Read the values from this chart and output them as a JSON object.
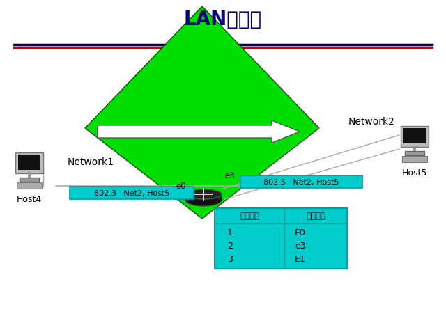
{
  "title": "LAN间路由",
  "title_color": "#000080",
  "title_fontsize": 20,
  "line1_color": "#000080",
  "line2_color": "#cc0000",
  "network1_label": "Network1",
  "network2_label": "Network2",
  "host4_label": "Host4",
  "host5_label": "Host5",
  "packet1_label": "802.3   Net2, Host5",
  "packet2_label": "802.5   Net2, Host5",
  "e0_label": "e0",
  "e3_label": "e3",
  "table_header": [
    "目的网段",
    "输出接口"
  ],
  "table_rows": [
    [
      "1",
      "E0"
    ],
    [
      "2",
      "e3"
    ],
    [
      "3",
      "E1"
    ]
  ],
  "diamond_color": "#00dd00",
  "arrow_color": "#ffffff",
  "arrow_outline": "#555555",
  "cyan_color": "#00cccc",
  "cyan_edge": "#009999",
  "router_dark": "#1a1a1a",
  "host_dark": "#444444",
  "line_color": "#aaaaaa",
  "bg_color": "#ffffff"
}
